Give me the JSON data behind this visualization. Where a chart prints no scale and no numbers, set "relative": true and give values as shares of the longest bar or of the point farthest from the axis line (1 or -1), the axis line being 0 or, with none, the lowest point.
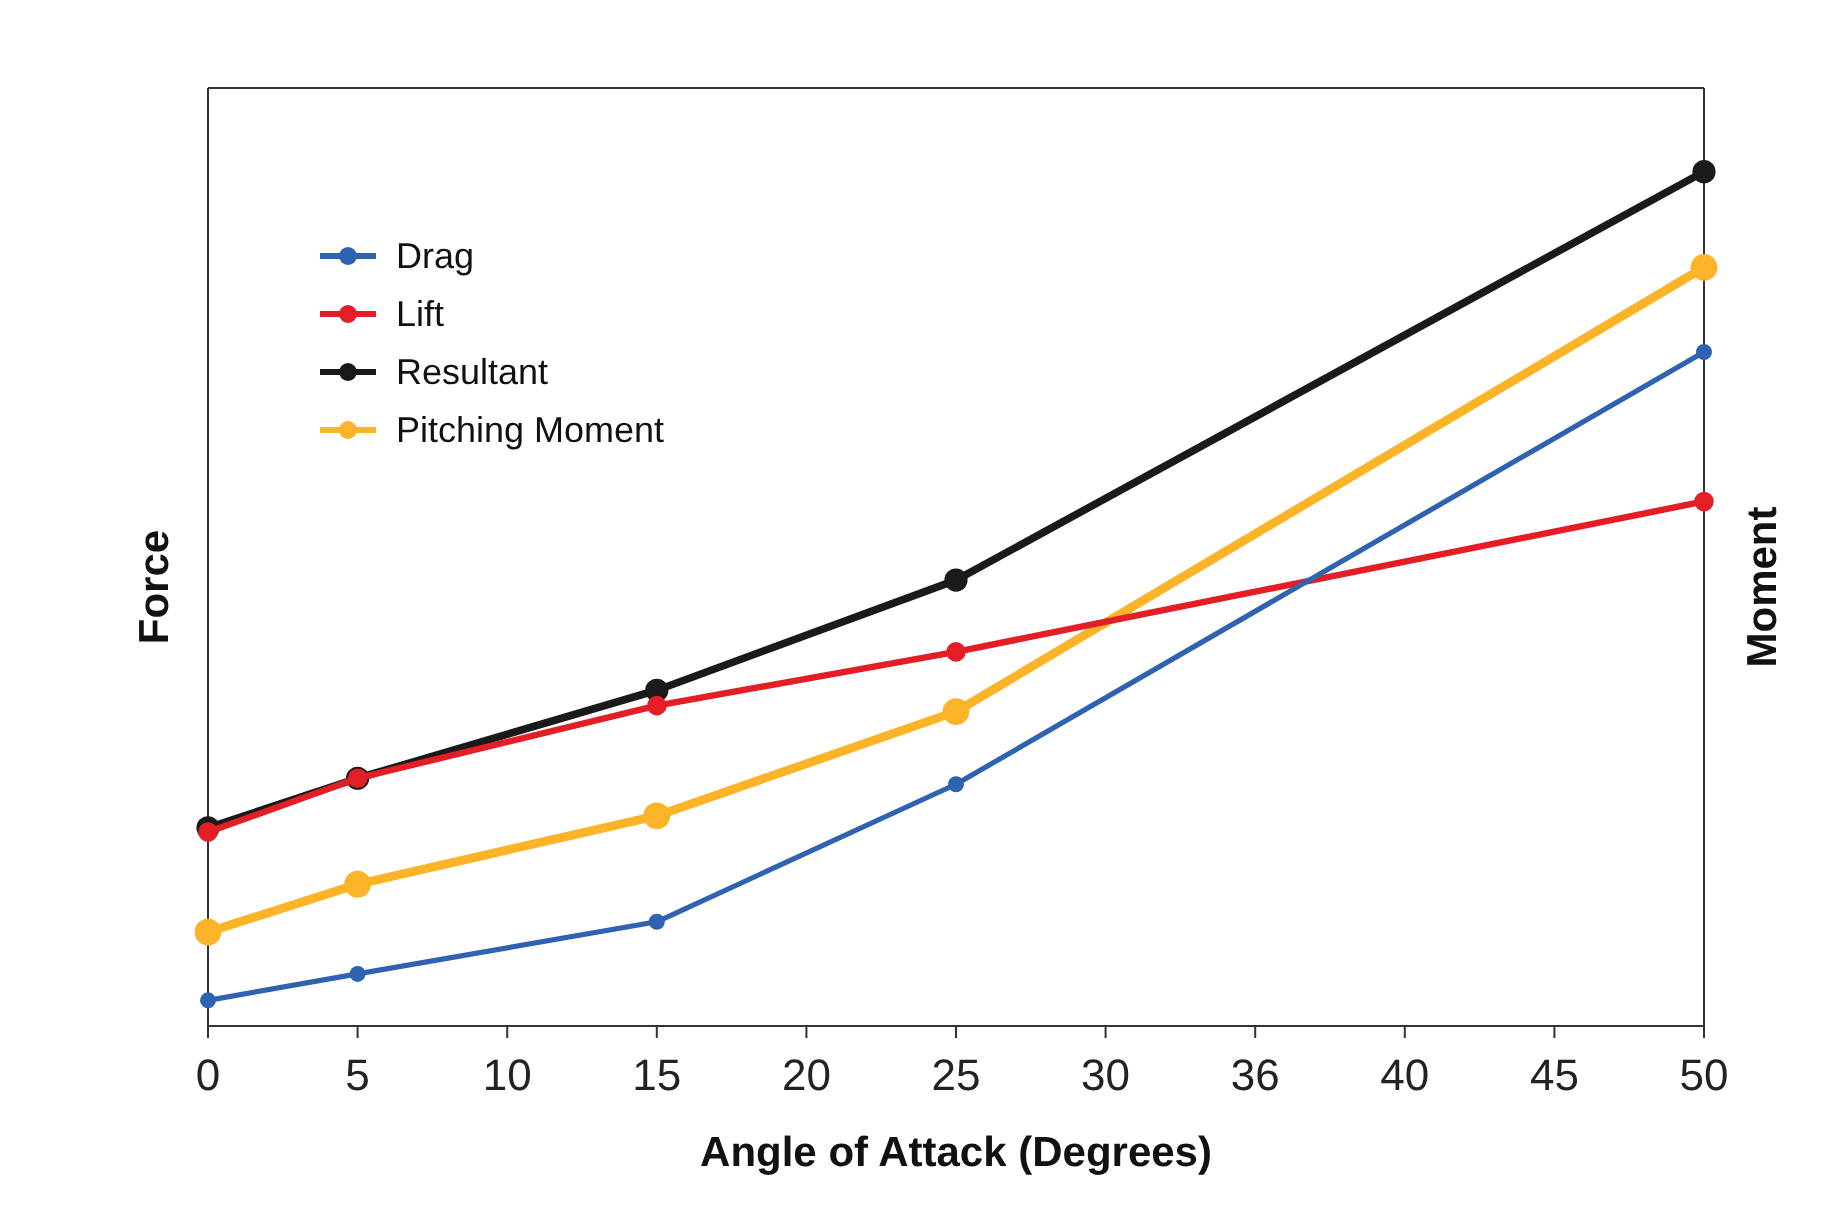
{
  "chart_data": {
    "type": "line",
    "xlabel": "Angle of Attack (Degrees)",
    "ylabel": "Force",
    "y2label": "Moment",
    "relative": true,
    "categories": [
      "0",
      "5",
      "10",
      "15",
      "20",
      "25",
      "30",
      "36",
      "40",
      "45",
      "50"
    ],
    "series": [
      {
        "name": "Drag",
        "color": "#2f62b0",
        "x": [
          "0",
          "5",
          "15",
          "25",
          "50"
        ],
        "values": [
          0.03,
          0.061,
          0.122,
          0.283,
          0.789
        ]
      },
      {
        "name": "Lift",
        "color": "#e31e26",
        "x": [
          "0",
          "5",
          "15",
          "25",
          "50"
        ],
        "values": [
          0.227,
          0.29,
          0.375,
          0.438,
          0.614
        ]
      },
      {
        "name": "Resultant",
        "color": "#1a1a1a",
        "x": [
          "0",
          "5",
          "15",
          "25",
          "50"
        ],
        "values": [
          0.232,
          0.29,
          0.393,
          0.522,
          1
        ]
      },
      {
        "name": "Pitching Moment",
        "color": "#fbb427",
        "x": [
          "0",
          "5",
          "15",
          "25",
          "50"
        ],
        "values": [
          0.11,
          0.166,
          0.246,
          0.368,
          0.888
        ]
      }
    ],
    "marker": "circle",
    "line_style": "solid",
    "grid": false,
    "legend": "top left"
  }
}
